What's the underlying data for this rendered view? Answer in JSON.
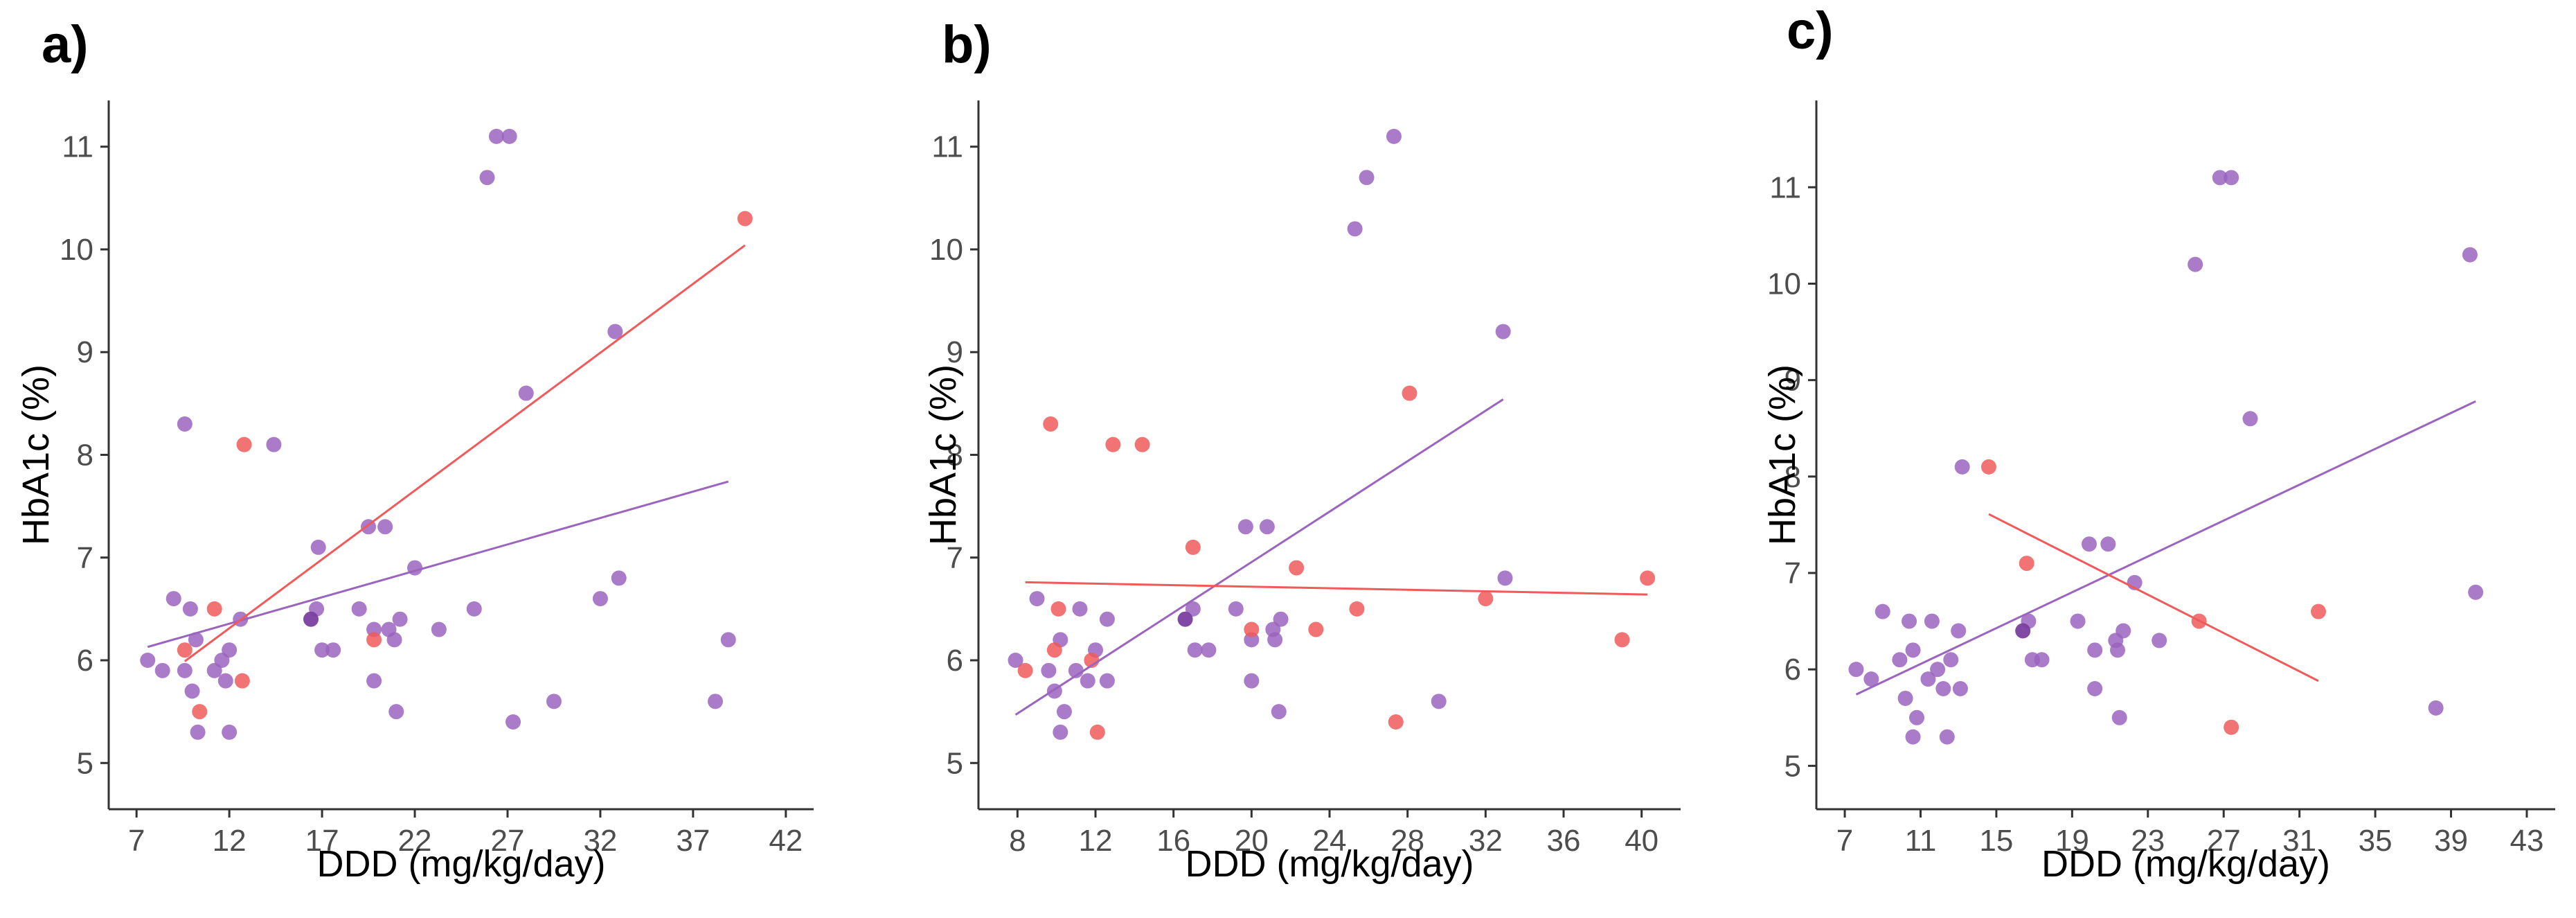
{
  "colors": {
    "red": "#f05a5a",
    "purple": "#9b64be",
    "overlap": "#7a3fa0"
  },
  "chart_data": [
    {
      "type": "scatter",
      "panel": "a)",
      "xlabel": "DDD (mg/kg/day)",
      "ylabel": "HbA1c (%)",
      "xlim": [
        5.5,
        43.5
      ],
      "ylim": [
        4.55,
        11.45
      ],
      "xticks": [
        7,
        12,
        17,
        22,
        27,
        32,
        37,
        42
      ],
      "yticks": [
        5,
        6,
        7,
        8,
        9,
        10,
        11
      ],
      "series": [
        {
          "color": "purple",
          "points": [
            [
              7.6,
              6.0
            ],
            [
              8.4,
              5.9
            ],
            [
              9.0,
              6.6
            ],
            [
              9.6,
              8.3
            ],
            [
              9.6,
              5.9
            ],
            [
              9.9,
              6.5
            ],
            [
              10.0,
              5.7
            ],
            [
              10.2,
              6.2
            ],
            [
              10.3,
              5.3
            ],
            [
              11.2,
              5.9
            ],
            [
              11.6,
              6.0
            ],
            [
              11.8,
              5.8
            ],
            [
              12.0,
              6.1
            ],
            [
              12.0,
              5.3
            ],
            [
              12.6,
              6.4
            ],
            [
              14.4,
              8.1
            ],
            [
              16.7,
              6.5
            ],
            [
              16.8,
              7.1
            ],
            [
              17.0,
              6.1
            ],
            [
              17.6,
              6.1
            ],
            [
              19.0,
              6.5
            ],
            [
              19.5,
              7.3
            ],
            [
              19.8,
              6.3
            ],
            [
              19.8,
              5.8
            ],
            [
              20.4,
              7.3
            ],
            [
              20.6,
              6.3
            ],
            [
              20.9,
              6.2
            ],
            [
              21.0,
              5.5
            ],
            [
              21.2,
              6.4
            ],
            [
              22.0,
              6.9
            ],
            [
              23.3,
              6.3
            ],
            [
              25.2,
              6.5
            ],
            [
              25.9,
              10.7
            ],
            [
              26.4,
              11.1
            ],
            [
              27.1,
              11.1
            ],
            [
              27.3,
              5.4
            ],
            [
              28.0,
              8.6
            ],
            [
              29.5,
              5.6
            ],
            [
              32.0,
              6.6
            ],
            [
              32.8,
              9.2
            ],
            [
              33.0,
              6.8
            ],
            [
              38.2,
              5.6
            ],
            [
              38.9,
              6.2
            ]
          ]
        },
        {
          "color": "red",
          "points": [
            [
              9.6,
              6.1
            ],
            [
              10.4,
              5.5
            ],
            [
              11.2,
              6.5
            ],
            [
              12.7,
              5.8
            ],
            [
              12.8,
              8.1
            ],
            [
              19.8,
              6.2
            ],
            [
              39.8,
              10.3
            ]
          ]
        },
        {
          "color": "overlap",
          "points": [
            [
              16.4,
              6.4
            ]
          ]
        }
      ],
      "fits": [
        {
          "color": "purple",
          "from": [
            7.6,
            6.13
          ],
          "to": [
            38.9,
            7.74
          ]
        },
        {
          "color": "red",
          "from": [
            9.6,
            5.99
          ],
          "to": [
            39.8,
            10.04
          ]
        }
      ]
    },
    {
      "type": "scatter",
      "panel": "b)",
      "xlabel": "DDD (mg/kg/day)",
      "ylabel": "HbA1c (%)",
      "xlim": [
        6.0,
        42.0
      ],
      "ylim": [
        4.55,
        11.45
      ],
      "xticks": [
        8,
        12,
        16,
        20,
        24,
        28,
        32,
        36,
        40
      ],
      "yticks": [
        5,
        6,
        7,
        8,
        9,
        10,
        11
      ],
      "series": [
        {
          "color": "purple",
          "points": [
            [
              7.9,
              6.0
            ],
            [
              9.0,
              6.6
            ],
            [
              9.6,
              5.9
            ],
            [
              9.9,
              5.7
            ],
            [
              10.2,
              6.2
            ],
            [
              10.2,
              5.3
            ],
            [
              10.4,
              5.5
            ],
            [
              11.0,
              5.9
            ],
            [
              11.2,
              6.5
            ],
            [
              11.6,
              5.8
            ],
            [
              12.0,
              6.1
            ],
            [
              12.6,
              6.4
            ],
            [
              12.6,
              5.8
            ],
            [
              17.0,
              6.5
            ],
            [
              17.1,
              6.1
            ],
            [
              17.8,
              6.1
            ],
            [
              19.2,
              6.5
            ],
            [
              19.7,
              7.3
            ],
            [
              20.0,
              6.2
            ],
            [
              20.0,
              5.8
            ],
            [
              20.8,
              7.3
            ],
            [
              21.1,
              6.3
            ],
            [
              21.2,
              6.2
            ],
            [
              21.4,
              5.5
            ],
            [
              21.5,
              6.4
            ],
            [
              25.3,
              10.2
            ],
            [
              25.9,
              10.7
            ],
            [
              27.3,
              11.1
            ],
            [
              29.6,
              5.6
            ],
            [
              32.9,
              9.2
            ],
            [
              33.0,
              6.8
            ]
          ]
        },
        {
          "color": "red",
          "points": [
            [
              8.4,
              5.9
            ],
            [
              9.7,
              8.3
            ],
            [
              9.9,
              6.1
            ],
            [
              10.1,
              6.5
            ],
            [
              11.8,
              6.0
            ],
            [
              12.1,
              5.3
            ],
            [
              12.9,
              8.1
            ],
            [
              14.4,
              8.1
            ],
            [
              17.0,
              7.1
            ],
            [
              20.0,
              6.3
            ],
            [
              22.3,
              6.9
            ],
            [
              23.3,
              6.3
            ],
            [
              25.4,
              6.5
            ],
            [
              27.4,
              5.4
            ],
            [
              28.1,
              8.6
            ],
            [
              32.0,
              6.6
            ],
            [
              39.0,
              6.2
            ],
            [
              40.3,
              6.8
            ]
          ]
        },
        {
          "color": "overlap",
          "points": [
            [
              16.6,
              6.4
            ]
          ]
        }
      ],
      "fits": [
        {
          "color": "purple",
          "from": [
            7.9,
            5.47
          ],
          "to": [
            32.9,
            8.54
          ]
        },
        {
          "color": "red",
          "from": [
            8.4,
            6.76
          ],
          "to": [
            40.3,
            6.64
          ]
        }
      ]
    },
    {
      "type": "scatter",
      "panel": "c)",
      "xlabel": "DDD (mg/kg/day)",
      "ylabel": "HbA1c (%)",
      "xlim": [
        5.5,
        44.5
      ],
      "ylim": [
        4.55,
        11.9
      ],
      "xticks": [
        7,
        11,
        15,
        19,
        23,
        27,
        31,
        35,
        39,
        43
      ],
      "yticks": [
        5,
        6,
        7,
        8,
        9,
        10,
        11
      ],
      "series": [
        {
          "color": "purple",
          "points": [
            [
              7.6,
              6.0
            ],
            [
              8.4,
              5.9
            ],
            [
              9.0,
              6.6
            ],
            [
              9.9,
              6.1
            ],
            [
              10.2,
              5.7
            ],
            [
              10.4,
              6.5
            ],
            [
              10.6,
              5.3
            ],
            [
              10.6,
              6.2
            ],
            [
              10.8,
              5.5
            ],
            [
              11.4,
              5.9
            ],
            [
              11.6,
              6.5
            ],
            [
              11.9,
              6.0
            ],
            [
              12.2,
              5.8
            ],
            [
              12.4,
              5.3
            ],
            [
              12.6,
              6.1
            ],
            [
              13.0,
              6.4
            ],
            [
              13.1,
              5.8
            ],
            [
              13.2,
              8.1
            ],
            [
              16.7,
              6.5
            ],
            [
              16.9,
              6.1
            ],
            [
              17.4,
              6.1
            ],
            [
              19.3,
              6.5
            ],
            [
              19.9,
              7.3
            ],
            [
              20.2,
              6.2
            ],
            [
              20.2,
              5.8
            ],
            [
              20.9,
              7.3
            ],
            [
              21.3,
              6.3
            ],
            [
              21.4,
              6.2
            ],
            [
              21.5,
              5.5
            ],
            [
              21.7,
              6.4
            ],
            [
              22.3,
              6.9
            ],
            [
              23.6,
              6.3
            ],
            [
              25.5,
              10.2
            ],
            [
              26.8,
              11.1
            ],
            [
              27.4,
              11.1
            ],
            [
              28.4,
              8.6
            ],
            [
              38.2,
              5.6
            ],
            [
              40.0,
              10.3
            ],
            [
              40.3,
              6.8
            ]
          ]
        },
        {
          "color": "red",
          "points": [
            [
              14.6,
              8.1
            ],
            [
              16.6,
              7.1
            ],
            [
              25.7,
              6.5
            ],
            [
              27.4,
              5.4
            ],
            [
              32.0,
              6.6
            ]
          ]
        },
        {
          "color": "overlap",
          "points": [
            [
              16.4,
              6.4
            ]
          ]
        }
      ],
      "fits": [
        {
          "color": "purple",
          "from": [
            7.6,
            5.74
          ],
          "to": [
            40.3,
            8.78
          ]
        },
        {
          "color": "red",
          "from": [
            14.6,
            7.61
          ],
          "to": [
            32.0,
            5.88
          ]
        }
      ]
    }
  ]
}
